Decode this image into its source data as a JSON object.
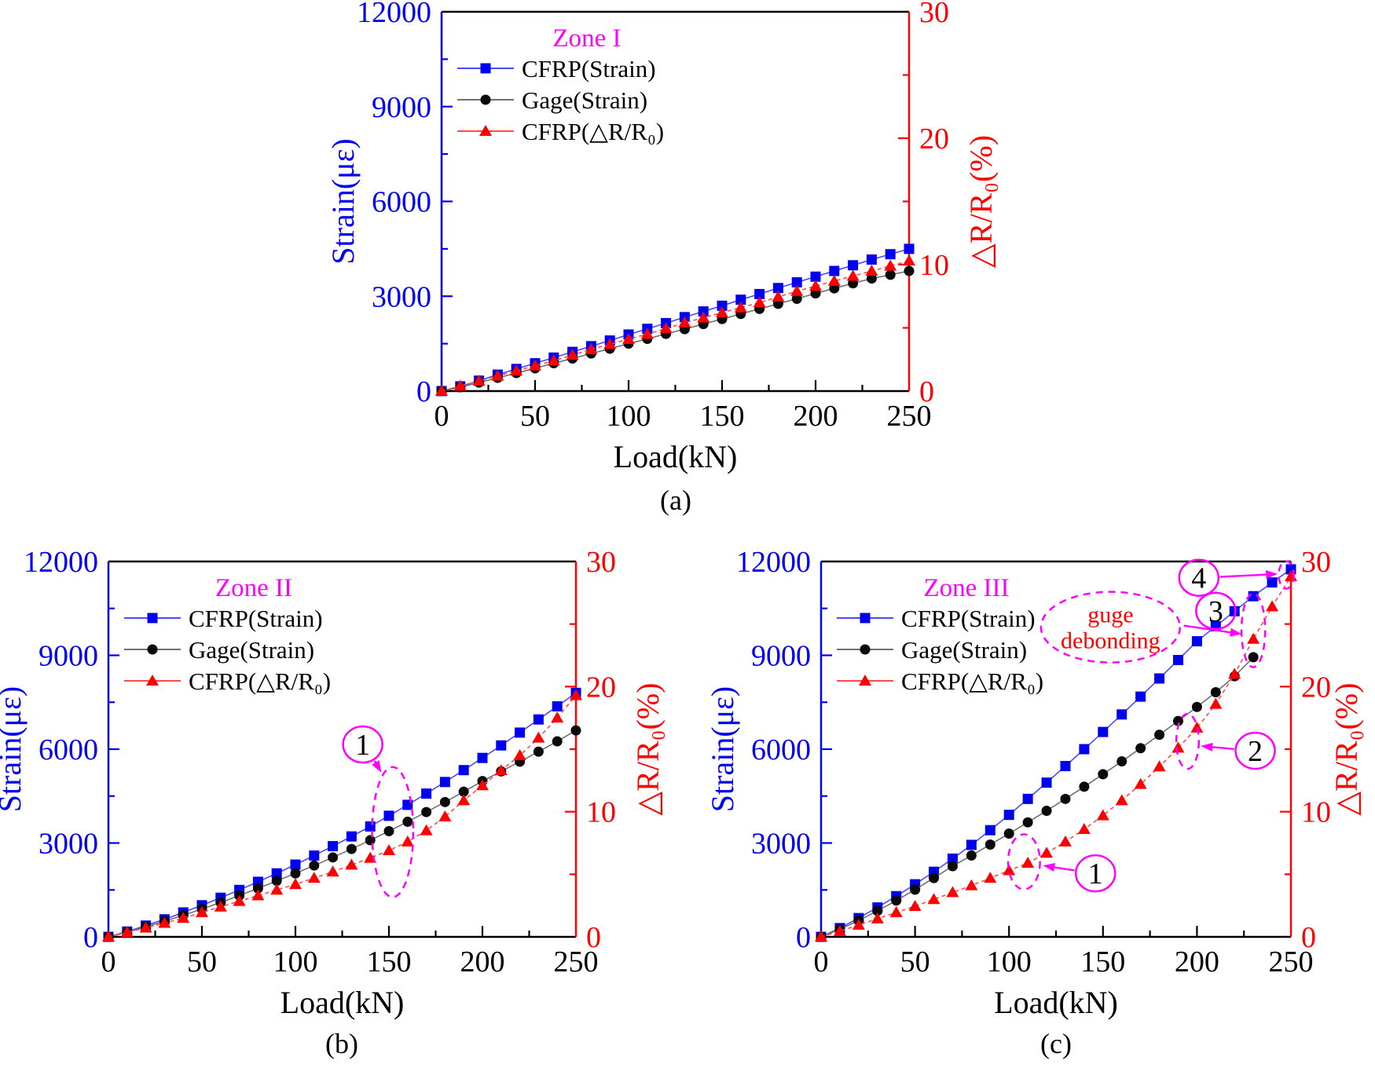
{
  "palette": {
    "blue": "#0000F0",
    "red": "#FF0000",
    "black": "#000000",
    "magenta": "#FF00FF",
    "blue_line": "#4A4AFF",
    "gray_line": "#707070",
    "red_line": "#FF4A4A",
    "background": "#FFFFFF"
  },
  "captions": {
    "a": "(a)",
    "b": "(b)",
    "c": "(c)"
  },
  "chart_data": [
    {
      "id": "a",
      "type": "line",
      "caption": "(a)",
      "zone_label": "Zone I",
      "title_x": "Load(kN)",
      "title_y_left": "Strain(με)",
      "title_y_right": "△R/R₀(%)",
      "x_range": [
        0,
        250
      ],
      "x_major_step": 50,
      "x_minor_step": 25,
      "y_left_range": [
        0,
        12000
      ],
      "y_left_major_step": 3000,
      "y_left_minor_step": 1500,
      "y_right_range": [
        0,
        30
      ],
      "y_right_major_step": 10,
      "y_right_minor_step": 5,
      "legend_position": "top-inside",
      "grid": false,
      "legend": [
        {
          "label": "CFRP(Strain)",
          "marker": "square",
          "color": "#0000F0",
          "line_color": "#4A4AFF"
        },
        {
          "label": "Gage(Strain)",
          "marker": "circle",
          "color": "#0A0A0A",
          "line_color": "#707070"
        },
        {
          "label": "CFRP(△R/R₀)",
          "marker": "triangle",
          "color": "#FF0000",
          "line_color": "#FF4A4A"
        }
      ],
      "series": [
        {
          "name": "CFRP(Strain)",
          "axis": "left",
          "x_step": 10,
          "values": [
            0,
            150,
            330,
            520,
            700,
            880,
            1060,
            1240,
            1420,
            1600,
            1790,
            1970,
            2150,
            2340,
            2520,
            2700,
            2890,
            3070,
            3260,
            3440,
            3620,
            3800,
            3980,
            4160,
            4330,
            4500
          ]
        },
        {
          "name": "Gage(Strain)",
          "axis": "left",
          "x_step": 10,
          "values": [
            0,
            120,
            270,
            420,
            570,
            720,
            880,
            1030,
            1190,
            1340,
            1500,
            1650,
            1810,
            1960,
            2120,
            2280,
            2440,
            2600,
            2760,
            2920,
            3090,
            3250,
            3410,
            3560,
            3680,
            3800
          ]
        },
        {
          "name": "CFRP(△R/R₀)",
          "axis": "right",
          "x_step": 10,
          "dashed_line": true,
          "values": [
            0,
            0.4,
            0.8,
            1.2,
            1.6,
            2.0,
            2.4,
            2.85,
            3.3,
            3.7,
            4.1,
            4.5,
            4.95,
            5.4,
            5.8,
            6.2,
            6.6,
            7.0,
            7.45,
            7.9,
            8.3,
            8.7,
            9.1,
            9.5,
            9.9,
            10.3
          ]
        }
      ],
      "annotations": []
    },
    {
      "id": "b",
      "type": "line",
      "caption": "(b)",
      "zone_label": "Zone II",
      "title_x": "Load(kN)",
      "title_y_left": "Strain(με)",
      "title_y_right": "△R/R₀(%)",
      "x_range": [
        0,
        250
      ],
      "x_major_step": 50,
      "x_minor_step": 25,
      "y_left_range": [
        0,
        12000
      ],
      "y_left_major_step": 3000,
      "y_left_minor_step": 1500,
      "y_right_range": [
        0,
        30
      ],
      "y_right_major_step": 10,
      "y_right_minor_step": 5,
      "legend_position": "top-inside",
      "grid": false,
      "legend": [
        {
          "label": "CFRP(Strain)",
          "marker": "square",
          "color": "#0000F0",
          "line_color": "#4A4AFF"
        },
        {
          "label": "Gage(Strain)",
          "marker": "circle",
          "color": "#0A0A0A",
          "line_color": "#707070"
        },
        {
          "label": "CFRP(△R/R₀)",
          "marker": "triangle",
          "color": "#FF0000",
          "line_color": "#FF4A4A"
        }
      ],
      "series": [
        {
          "name": "CFRP(Strain)",
          "axis": "left",
          "x_step": 10,
          "values": [
            0,
            170,
            360,
            560,
            780,
            1010,
            1250,
            1500,
            1760,
            2030,
            2310,
            2600,
            2900,
            3210,
            3530,
            3870,
            4220,
            4580,
            4950,
            5330,
            5720,
            6120,
            6530,
            6950,
            7370,
            7800
          ]
        },
        {
          "name": "Gage(Strain)",
          "axis": "left",
          "x_step": 10,
          "values": [
            0,
            150,
            320,
            500,
            690,
            890,
            1100,
            1320,
            1550,
            1790,
            2030,
            2280,
            2540,
            2810,
            3090,
            3380,
            3680,
            3990,
            4310,
            4640,
            4980,
            5290,
            5600,
            5920,
            6250,
            6600
          ]
        },
        {
          "name": "CFRP(△R/R₀)",
          "axis": "right",
          "x_step": 10,
          "dashed_line": true,
          "values": [
            0,
            0.35,
            0.72,
            1.1,
            1.5,
            1.95,
            2.4,
            2.85,
            3.3,
            3.75,
            4.2,
            4.7,
            5.2,
            5.75,
            6.3,
            6.9,
            7.6,
            8.5,
            9.6,
            10.9,
            12.1,
            13.3,
            14.5,
            15.9,
            17.5,
            19.3
          ]
        }
      ],
      "annotations": [
        {
          "type": "ellipse",
          "x_kn": 152,
          "y_strain": 3350,
          "rx_kn": 11,
          "ry_strain": 2080
        },
        {
          "type": "circled_number",
          "label": "1",
          "x_kn": 136,
          "y_strain": 6150,
          "arrow_to_kn": 146,
          "arrow_to_strain": 5250
        }
      ]
    },
    {
      "id": "c",
      "type": "line",
      "caption": "(c)",
      "zone_label": "Zone III",
      "title_x": "Load(kN)",
      "title_y_left": "Strain(με)",
      "title_y_right": "△R/R₀(%)",
      "x_range": [
        0,
        250
      ],
      "x_major_step": 50,
      "x_minor_step": 25,
      "y_left_range": [
        0,
        12000
      ],
      "y_left_major_step": 3000,
      "y_left_minor_step": 1500,
      "y_right_range": [
        0,
        30
      ],
      "y_right_major_step": 10,
      "y_right_minor_step": 5,
      "legend_position": "top-inside",
      "grid": false,
      "legend": [
        {
          "label": "CFRP(Strain)",
          "marker": "square",
          "color": "#0000F0",
          "line_color": "#4A4AFF"
        },
        {
          "label": "Gage(Strain)",
          "marker": "circle",
          "color": "#0A0A0A",
          "line_color": "#707070"
        },
        {
          "label": "CFRP(△R/R₀)",
          "marker": "triangle",
          "color": "#FF0000",
          "line_color": "#FF4A4A"
        }
      ],
      "series": [
        {
          "name": "CFRP(Strain)",
          "axis": "left",
          "x_step": 10,
          "values": [
            0,
            280,
            600,
            940,
            1300,
            1680,
            2080,
            2500,
            2940,
            3410,
            3900,
            4410,
            4930,
            5460,
            6000,
            6550,
            7110,
            7680,
            8260,
            8850,
            9450,
            9930,
            10410,
            10890,
            11330,
            11750
          ]
        },
        {
          "name": "Gage(Strain)",
          "axis": "left",
          "x_step": 10,
          "x_max": 230,
          "values": [
            0,
            240,
            520,
            830,
            1160,
            1510,
            1880,
            2260,
            2600,
            2950,
            3300,
            3660,
            4030,
            4410,
            4800,
            5200,
            5610,
            6030,
            6460,
            6900,
            7350,
            7820,
            8330,
            8940
          ]
        },
        {
          "name": "CFRP(△R/R₀)",
          "axis": "right",
          "x_step": 10,
          "dashed_line": true,
          "values": [
            0,
            0.45,
            0.95,
            1.45,
            1.95,
            2.45,
            3.0,
            3.55,
            4.1,
            4.7,
            5.3,
            5.9,
            6.7,
            7.6,
            8.6,
            9.7,
            10.9,
            12.2,
            13.6,
            15.1,
            16.7,
            18.6,
            21.0,
            23.8,
            26.4,
            28.8
          ]
        }
      ],
      "annotations": [
        {
          "type": "text_ellipse",
          "lines": [
            "guge",
            "debonding"
          ],
          "x_kn": 154,
          "y_strain": 9900,
          "rx_kn": 37,
          "ry_strain": 1130,
          "text_color": "#FF0000"
        },
        {
          "type": "arrow",
          "x1_kn": 193,
          "y1_strain": 9950,
          "x2_kn": 224,
          "y2_strain": 9680
        },
        {
          "type": "ellipse",
          "x_kn": 108,
          "y_strain": 2400,
          "rx_kn": 8.5,
          "ry_strain": 880
        },
        {
          "type": "circled_number",
          "label": "1",
          "x_kn": 146,
          "y_strain": 2030,
          "arrow_to_kn": 118,
          "arrow_to_strain": 2280
        },
        {
          "type": "ellipse",
          "x_kn": 195,
          "y_strain": 6250,
          "rx_kn": 6,
          "ry_strain": 880
        },
        {
          "type": "circled_number",
          "label": "2",
          "x_kn": 231,
          "y_strain": 5950,
          "arrow_to_kn": 202,
          "arrow_to_strain": 6100
        },
        {
          "type": "ellipse",
          "x_kn": 230,
          "y_strain": 9800,
          "rx_kn": 6.3,
          "ry_strain": 1180
        },
        {
          "type": "circled_number",
          "label": "3",
          "x_kn": 210,
          "y_strain": 10420
        },
        {
          "type": "ellipse",
          "x_kn": 247.5,
          "y_strain": 11570,
          "rx_kn": 4,
          "ry_strain": 440
        },
        {
          "type": "circled_number",
          "label": "4",
          "x_kn": 201,
          "y_strain": 11480,
          "arrow_to_kn": 243,
          "arrow_to_strain": 11600
        }
      ]
    }
  ]
}
